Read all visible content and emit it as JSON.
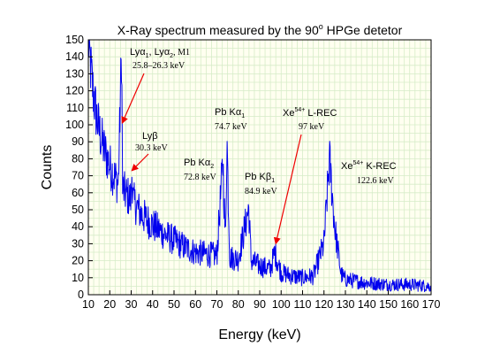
{
  "chart_data": {
    "type": "line",
    "title": "X-Ray spectrum measured by the 90° HPGe detetor",
    "title_parts": {
      "pre": "X-Ray spectrum measured by the 90",
      "sup": "o",
      "post": " HPGe detetor"
    },
    "xlabel": "Energy (keV)",
    "ylabel": "Counts",
    "xlim": [
      10,
      170
    ],
    "ylim": [
      0,
      150
    ],
    "xticks": [
      10,
      20,
      30,
      40,
      50,
      60,
      70,
      80,
      90,
      100,
      110,
      120,
      130,
      140,
      150,
      160,
      170
    ],
    "yticks": [
      0,
      10,
      20,
      30,
      40,
      50,
      60,
      70,
      80,
      90,
      100,
      110,
      120,
      130,
      140,
      150
    ],
    "grid": true,
    "grid_color": "#d6ecc8",
    "background": "#fffff0",
    "line_color": "#0000ee",
    "annotation_arrow_color": "#ee0000",
    "series": [
      {
        "x": [
          10,
          11,
          12,
          13,
          14,
          15,
          17,
          20,
          22,
          24,
          25.5,
          26,
          27,
          30,
          30.3,
          31,
          35,
          40,
          45,
          50,
          55,
          60,
          65,
          70,
          72.8,
          74,
          74.7,
          76,
          80,
          84.9,
          86,
          90,
          95,
          97,
          100,
          105,
          110,
          115,
          120,
          122.6,
          125,
          128,
          130,
          135,
          140,
          150,
          160,
          170
        ],
        "y": [
          150,
          135,
          122,
          112,
          104,
          97,
          87,
          76,
          70,
          65,
          145,
          62,
          60,
          56,
          72,
          55,
          47,
          41,
          36,
          32,
          28,
          25,
          24,
          23,
          79,
          30,
          93,
          22,
          21,
          51,
          20,
          17,
          15,
          25,
          13,
          11,
          10,
          11,
          30,
          80,
          40,
          12,
          9,
          8,
          7,
          6,
          6,
          5
        ]
      }
    ],
    "annotations": [
      {
        "label": "Lyα1, Lyα2, M1",
        "main_pre": "Ly",
        "alpha1": "α",
        "sub1": "1",
        "sep": ", Ly",
        "alpha2": "α",
        "sub2": "2",
        "tail": ", M1",
        "energy": "25.8–26.3 keV",
        "target_x": 25.8,
        "target_y": 101
      },
      {
        "label": "Lyβ",
        "main": "Lyβ",
        "energy": "30.3 keV",
        "target_x": 30.3,
        "target_y": 73
      },
      {
        "label": "Pb Kα2",
        "main_pre": "Pb Kα",
        "sub": "2",
        "energy": "72.8 keV"
      },
      {
        "label": "Pb Kα1",
        "main_pre": "Pb Kα",
        "sub": "1",
        "energy": "74.7 keV"
      },
      {
        "label": "Pb Kβ1",
        "main_pre": "Pb Kβ",
        "sub": "1",
        "energy": "84.9 keV"
      },
      {
        "label": "Xe54+ L-REC",
        "main_pre": "Xe",
        "sup": "54+",
        "main_post": " L-REC",
        "energy": "97 keV",
        "target_x": 97.5,
        "target_y": 30
      },
      {
        "label": "Xe54+ K-REC",
        "main_pre": "Xe",
        "sup": "54+",
        "main_post": " K-REC",
        "energy": "122.6 keV"
      }
    ]
  }
}
